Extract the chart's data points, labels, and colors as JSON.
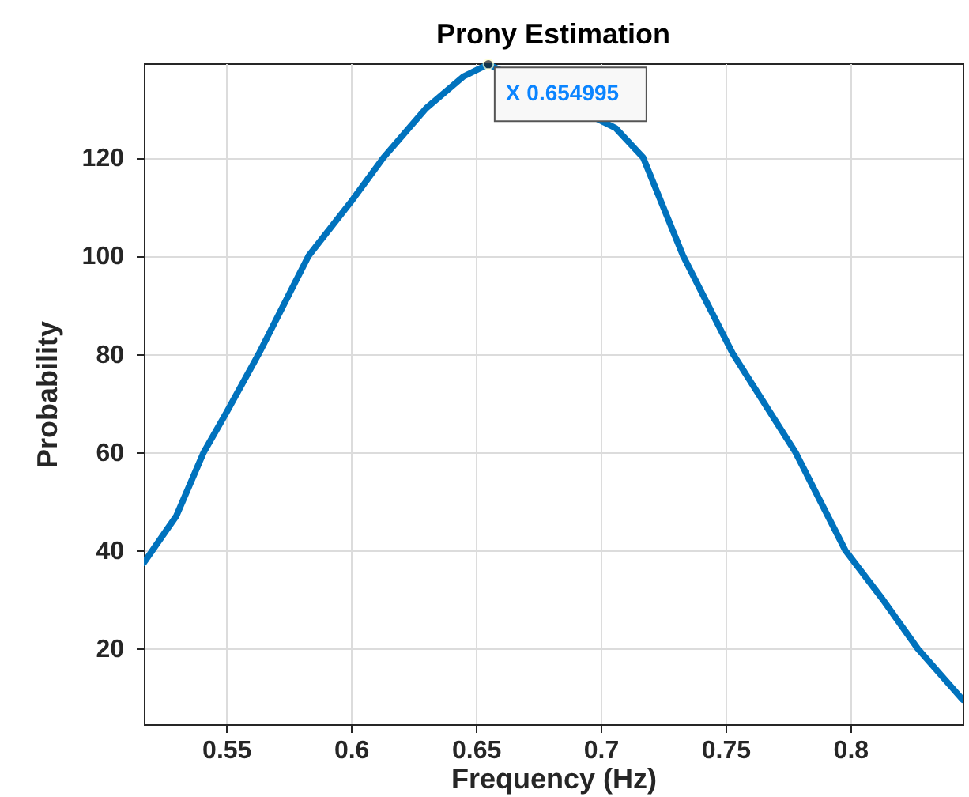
{
  "chart_data": {
    "type": "line",
    "title": "Prony Estimation",
    "xlabel": "Frequency (Hz)",
    "ylabel": "Probability",
    "x": [
      0.517,
      0.53,
      0.541,
      0.55,
      0.563,
      0.573,
      0.583,
      0.6,
      0.613,
      0.63,
      0.645,
      0.655,
      0.706,
      0.717,
      0.733,
      0.743,
      0.753,
      0.778,
      0.798,
      0.813,
      0.827,
      0.845
    ],
    "series": [
      {
        "color": "#0072bd",
        "values": [
          37.5,
          47,
          60,
          68,
          80,
          90,
          100,
          111,
          120,
          130,
          136.5,
          139,
          126,
          120,
          100,
          90,
          80,
          60,
          40,
          30,
          20,
          9.6
        ]
      }
    ],
    "xlim": [
      0.517,
      0.845
    ],
    "ylim": [
      4.6,
      139.2
    ],
    "xticks": [
      0.55,
      0.6,
      0.65,
      0.7,
      0.75,
      0.8
    ],
    "yticks": [
      20,
      40,
      60,
      80,
      100,
      120
    ],
    "grid": true,
    "marker": "none",
    "line_style": "solid",
    "annotations": [
      {
        "text": "X 0.654995",
        "x": 0.654995,
        "y": 139
      }
    ]
  }
}
